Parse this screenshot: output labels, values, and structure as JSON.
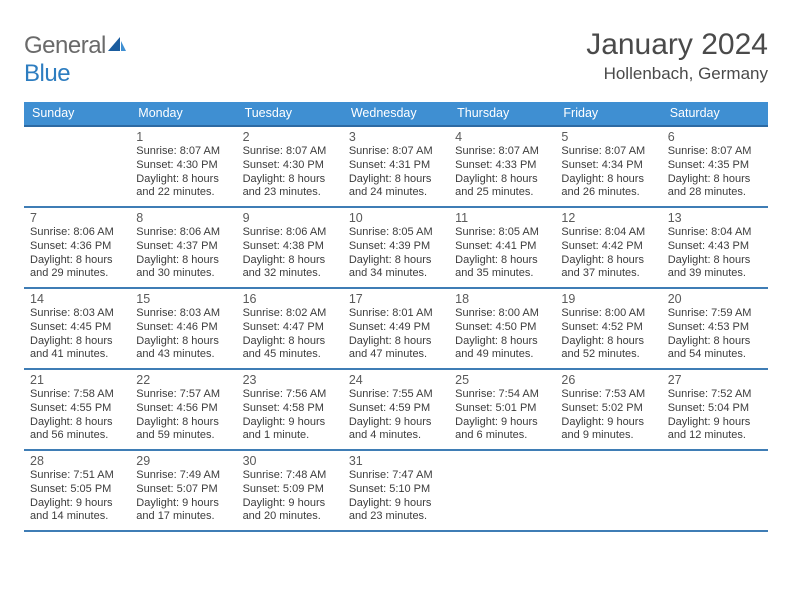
{
  "logo": {
    "word1": "General",
    "word2": "Blue"
  },
  "title": "January 2024",
  "location": "Hollenbach, Germany",
  "colors": {
    "header_bg": "#3f8fd2",
    "header_border": "#2d6aa3",
    "row_border": "#3f7db5",
    "text": "#3c3c3c",
    "title_text": "#4a4a4a",
    "logo_gray": "#6a6a6a",
    "logo_blue": "#2d7dc0"
  },
  "week_labels": [
    "Sunday",
    "Monday",
    "Tuesday",
    "Wednesday",
    "Thursday",
    "Friday",
    "Saturday"
  ],
  "label_sunrise": "Sunrise: ",
  "label_sunset": "Sunset: ",
  "label_daylight": "Daylight: ",
  "weeks": [
    [
      null,
      {
        "n": "1",
        "sr": "8:07 AM",
        "ss": "4:30 PM",
        "dl": "8 hours and 22 minutes."
      },
      {
        "n": "2",
        "sr": "8:07 AM",
        "ss": "4:30 PM",
        "dl": "8 hours and 23 minutes."
      },
      {
        "n": "3",
        "sr": "8:07 AM",
        "ss": "4:31 PM",
        "dl": "8 hours and 24 minutes."
      },
      {
        "n": "4",
        "sr": "8:07 AM",
        "ss": "4:33 PM",
        "dl": "8 hours and 25 minutes."
      },
      {
        "n": "5",
        "sr": "8:07 AM",
        "ss": "4:34 PM",
        "dl": "8 hours and 26 minutes."
      },
      {
        "n": "6",
        "sr": "8:07 AM",
        "ss": "4:35 PM",
        "dl": "8 hours and 28 minutes."
      }
    ],
    [
      {
        "n": "7",
        "sr": "8:06 AM",
        "ss": "4:36 PM",
        "dl": "8 hours and 29 minutes."
      },
      {
        "n": "8",
        "sr": "8:06 AM",
        "ss": "4:37 PM",
        "dl": "8 hours and 30 minutes."
      },
      {
        "n": "9",
        "sr": "8:06 AM",
        "ss": "4:38 PM",
        "dl": "8 hours and 32 minutes."
      },
      {
        "n": "10",
        "sr": "8:05 AM",
        "ss": "4:39 PM",
        "dl": "8 hours and 34 minutes."
      },
      {
        "n": "11",
        "sr": "8:05 AM",
        "ss": "4:41 PM",
        "dl": "8 hours and 35 minutes."
      },
      {
        "n": "12",
        "sr": "8:04 AM",
        "ss": "4:42 PM",
        "dl": "8 hours and 37 minutes."
      },
      {
        "n": "13",
        "sr": "8:04 AM",
        "ss": "4:43 PM",
        "dl": "8 hours and 39 minutes."
      }
    ],
    [
      {
        "n": "14",
        "sr": "8:03 AM",
        "ss": "4:45 PM",
        "dl": "8 hours and 41 minutes."
      },
      {
        "n": "15",
        "sr": "8:03 AM",
        "ss": "4:46 PM",
        "dl": "8 hours and 43 minutes."
      },
      {
        "n": "16",
        "sr": "8:02 AM",
        "ss": "4:47 PM",
        "dl": "8 hours and 45 minutes."
      },
      {
        "n": "17",
        "sr": "8:01 AM",
        "ss": "4:49 PM",
        "dl": "8 hours and 47 minutes."
      },
      {
        "n": "18",
        "sr": "8:00 AM",
        "ss": "4:50 PM",
        "dl": "8 hours and 49 minutes."
      },
      {
        "n": "19",
        "sr": "8:00 AM",
        "ss": "4:52 PM",
        "dl": "8 hours and 52 minutes."
      },
      {
        "n": "20",
        "sr": "7:59 AM",
        "ss": "4:53 PM",
        "dl": "8 hours and 54 minutes."
      }
    ],
    [
      {
        "n": "21",
        "sr": "7:58 AM",
        "ss": "4:55 PM",
        "dl": "8 hours and 56 minutes."
      },
      {
        "n": "22",
        "sr": "7:57 AM",
        "ss": "4:56 PM",
        "dl": "8 hours and 59 minutes."
      },
      {
        "n": "23",
        "sr": "7:56 AM",
        "ss": "4:58 PM",
        "dl": "9 hours and 1 minute."
      },
      {
        "n": "24",
        "sr": "7:55 AM",
        "ss": "4:59 PM",
        "dl": "9 hours and 4 minutes."
      },
      {
        "n": "25",
        "sr": "7:54 AM",
        "ss": "5:01 PM",
        "dl": "9 hours and 6 minutes."
      },
      {
        "n": "26",
        "sr": "7:53 AM",
        "ss": "5:02 PM",
        "dl": "9 hours and 9 minutes."
      },
      {
        "n": "27",
        "sr": "7:52 AM",
        "ss": "5:04 PM",
        "dl": "9 hours and 12 minutes."
      }
    ],
    [
      {
        "n": "28",
        "sr": "7:51 AM",
        "ss": "5:05 PM",
        "dl": "9 hours and 14 minutes."
      },
      {
        "n": "29",
        "sr": "7:49 AM",
        "ss": "5:07 PM",
        "dl": "9 hours and 17 minutes."
      },
      {
        "n": "30",
        "sr": "7:48 AM",
        "ss": "5:09 PM",
        "dl": "9 hours and 20 minutes."
      },
      {
        "n": "31",
        "sr": "7:47 AM",
        "ss": "5:10 PM",
        "dl": "9 hours and 23 minutes."
      },
      null,
      null,
      null
    ]
  ]
}
